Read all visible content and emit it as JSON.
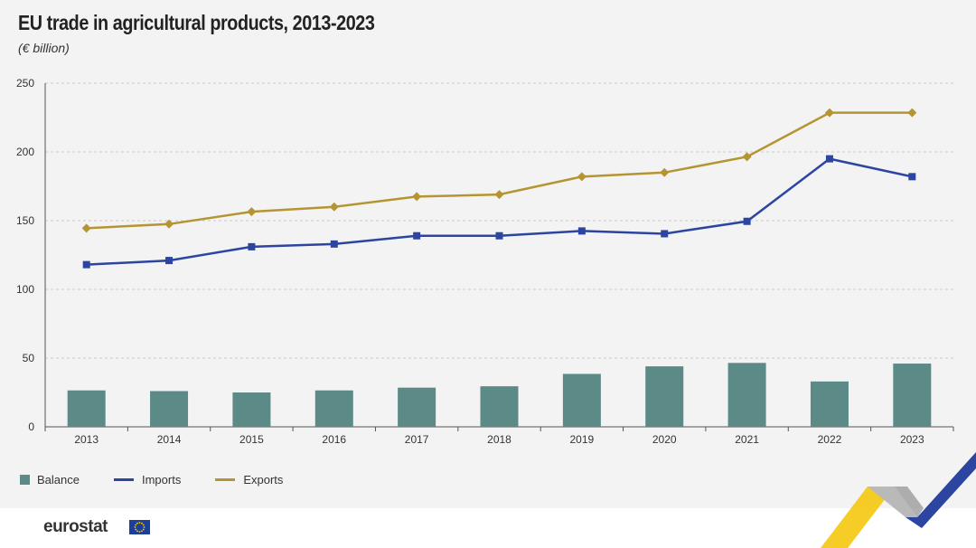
{
  "header": {
    "title": "EU trade in agricultural products, 2013-2023",
    "subtitle": "(€ billion)"
  },
  "legend": {
    "items": [
      {
        "label": "Balance",
        "color": "#5b8a87",
        "kind": "box"
      },
      {
        "label": "Imports",
        "color": "#2b45a0",
        "kind": "line"
      },
      {
        "label": "Exports",
        "color": "#b59532",
        "kind": "line"
      }
    ]
  },
  "footer": {
    "logo_text": "eurostat"
  },
  "chart_data": {
    "type": "bar+line",
    "title": "EU trade in agricultural products, 2013-2023",
    "subtitle": "(€ billion)",
    "categories": [
      "2013",
      "2014",
      "2015",
      "2016",
      "2017",
      "2018",
      "2019",
      "2020",
      "2021",
      "2022",
      "2023"
    ],
    "yticks": [
      0,
      50,
      100,
      150,
      200,
      250
    ],
    "ylim": [
      0,
      250
    ],
    "grid": true,
    "legend_position": "bottom-left",
    "series": [
      {
        "name": "Balance",
        "type": "bar",
        "color": "#5b8a87",
        "values": [
          26.5,
          26,
          25,
          26.5,
          28.5,
          29.5,
          38.5,
          44,
          46.5,
          33,
          46
        ]
      },
      {
        "name": "Imports",
        "type": "line",
        "marker": "square",
        "color": "#2b45a0",
        "values": [
          118,
          121,
          131,
          133,
          139,
          139,
          142.5,
          140.5,
          149.5,
          195,
          182
        ]
      },
      {
        "name": "Exports",
        "type": "line",
        "marker": "diamond",
        "color": "#b59532",
        "values": [
          144.5,
          147.5,
          156.5,
          160,
          167.5,
          169,
          182,
          185,
          196.5,
          228.5,
          228.5
        ]
      }
    ]
  }
}
